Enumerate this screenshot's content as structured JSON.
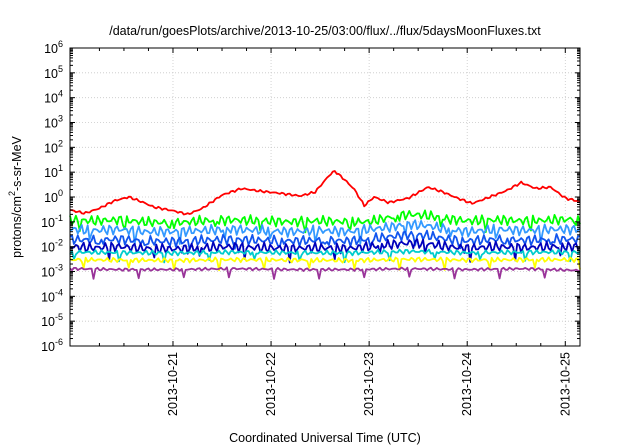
{
  "chart_data": {
    "type": "line",
    "title": "/data/run/goesPlots/archive/2013-10-25/03:00/flux/../flux/5daysMoonFluxes.txt",
    "xlabel": "Coordinated Universal Time (UTC)",
    "ylabel_parts": [
      "protons/cm",
      "2",
      "-s-sr-MeV"
    ],
    "y_scale": "log",
    "ylim": [
      1e-06,
      1000000.0
    ],
    "y_ticks": [
      {
        "base": "10",
        "exp": "-6",
        "value": 1e-06
      },
      {
        "base": "10",
        "exp": "-5",
        "value": 1e-05
      },
      {
        "base": "10",
        "exp": "-4",
        "value": 0.0001
      },
      {
        "base": "10",
        "exp": "-3",
        "value": 0.001
      },
      {
        "base": "10",
        "exp": "-2",
        "value": 0.01
      },
      {
        "base": "10",
        "exp": "-1",
        "value": 0.1
      },
      {
        "base": "10",
        "exp": "0",
        "value": 1
      },
      {
        "base": "10",
        "exp": "1",
        "value": 10
      },
      {
        "base": "10",
        "exp": "2",
        "value": 100
      },
      {
        "base": "10",
        "exp": "3",
        "value": 1000
      },
      {
        "base": "10",
        "exp": "4",
        "value": 10000
      },
      {
        "base": "10",
        "exp": "5",
        "value": 100000
      },
      {
        "base": "10",
        "exp": "6",
        "value": 1000000
      }
    ],
    "x_ticks": [
      "2013-10-21",
      "2013-10-22",
      "2013-10-23",
      "2013-10-24",
      "2013-10-25"
    ],
    "x_range_days": [
      -1.05,
      4.15
    ],
    "grid": true,
    "series": [
      {
        "color": "#ff0000",
        "values": [
          [
            -1.05,
            0.3
          ],
          [
            -0.9,
            0.22
          ],
          [
            -0.75,
            0.35
          ],
          [
            -0.6,
            0.7
          ],
          [
            -0.45,
            1.0
          ],
          [
            -0.3,
            0.6
          ],
          [
            -0.2,
            0.4
          ],
          [
            0.0,
            0.28
          ],
          [
            0.15,
            0.2
          ],
          [
            0.3,
            0.35
          ],
          [
            0.5,
            1.2
          ],
          [
            0.7,
            2.2
          ],
          [
            0.9,
            1.7
          ],
          [
            1.1,
            1.4
          ],
          [
            1.3,
            1.1
          ],
          [
            1.45,
            1.6
          ],
          [
            1.6,
            8.0
          ],
          [
            1.65,
            11.0
          ],
          [
            1.75,
            5.0
          ],
          [
            1.85,
            2.0
          ],
          [
            1.95,
            0.45
          ],
          [
            2.05,
            1.0
          ],
          [
            2.2,
            0.6
          ],
          [
            2.4,
            0.9
          ],
          [
            2.6,
            2.5
          ],
          [
            2.75,
            1.6
          ],
          [
            2.9,
            0.9
          ],
          [
            3.05,
            0.55
          ],
          [
            3.2,
            0.9
          ],
          [
            3.4,
            1.8
          ],
          [
            3.55,
            3.8
          ],
          [
            3.7,
            2.2
          ],
          [
            3.85,
            2.5
          ],
          [
            4.0,
            0.9
          ],
          [
            4.15,
            0.65
          ]
        ]
      },
      {
        "color": "#00ff00",
        "values": [
          [
            -1.05,
            0.12
          ],
          [
            -0.8,
            0.11
          ],
          [
            -0.55,
            0.12
          ],
          [
            -0.3,
            0.1
          ],
          [
            0.0,
            0.09
          ],
          [
            0.3,
            0.11
          ],
          [
            0.6,
            0.12
          ],
          [
            0.9,
            0.11
          ],
          [
            1.2,
            0.1
          ],
          [
            1.5,
            0.11
          ],
          [
            1.8,
            0.1
          ],
          [
            2.0,
            0.1
          ],
          [
            2.2,
            0.15
          ],
          [
            2.4,
            0.2
          ],
          [
            2.6,
            0.18
          ],
          [
            2.8,
            0.13
          ],
          [
            3.0,
            0.11
          ],
          [
            3.3,
            0.12
          ],
          [
            3.6,
            0.11
          ],
          [
            3.9,
            0.12
          ],
          [
            4.15,
            0.13
          ]
        ]
      },
      {
        "color": "#3399ff",
        "values": [
          [
            -1.05,
            0.05
          ],
          [
            -0.8,
            0.045
          ],
          [
            -0.55,
            0.05
          ],
          [
            -0.3,
            0.04
          ],
          [
            0.0,
            0.04
          ],
          [
            0.3,
            0.045
          ],
          [
            0.6,
            0.05
          ],
          [
            0.9,
            0.045
          ],
          [
            1.2,
            0.04
          ],
          [
            1.5,
            0.045
          ],
          [
            1.8,
            0.04
          ],
          [
            2.0,
            0.05
          ],
          [
            2.2,
            0.06
          ],
          [
            2.4,
            0.08
          ],
          [
            2.6,
            0.07
          ],
          [
            2.8,
            0.05
          ],
          [
            3.0,
            0.04
          ],
          [
            3.3,
            0.05
          ],
          [
            3.6,
            0.045
          ],
          [
            3.9,
            0.05
          ],
          [
            4.15,
            0.05
          ]
        ]
      },
      {
        "color": "#1155ee",
        "values": [
          [
            -1.05,
            0.02
          ],
          [
            -0.8,
            0.018
          ],
          [
            -0.55,
            0.02
          ],
          [
            -0.3,
            0.017
          ],
          [
            0.0,
            0.016
          ],
          [
            0.3,
            0.018
          ],
          [
            0.6,
            0.02
          ],
          [
            0.9,
            0.018
          ],
          [
            1.2,
            0.017
          ],
          [
            1.5,
            0.018
          ],
          [
            1.8,
            0.017
          ],
          [
            2.0,
            0.02
          ],
          [
            2.2,
            0.025
          ],
          [
            2.4,
            0.03
          ],
          [
            2.6,
            0.028
          ],
          [
            2.8,
            0.02
          ],
          [
            3.0,
            0.017
          ],
          [
            3.3,
            0.02
          ],
          [
            3.6,
            0.018
          ],
          [
            3.9,
            0.02
          ],
          [
            4.15,
            0.02
          ]
        ]
      },
      {
        "color": "#0000bb",
        "values": [
          [
            -1.05,
            0.01
          ],
          [
            -0.8,
            0.009
          ],
          [
            -0.55,
            0.01
          ],
          [
            -0.3,
            0.0085
          ],
          [
            0.0,
            0.008
          ],
          [
            0.3,
            0.009
          ],
          [
            0.6,
            0.01
          ],
          [
            0.9,
            0.009
          ],
          [
            1.2,
            0.0085
          ],
          [
            1.5,
            0.009
          ],
          [
            1.8,
            0.0085
          ],
          [
            2.0,
            0.01
          ],
          [
            2.2,
            0.012
          ],
          [
            2.4,
            0.014
          ],
          [
            2.6,
            0.013
          ],
          [
            2.8,
            0.01
          ],
          [
            3.0,
            0.0085
          ],
          [
            3.3,
            0.01
          ],
          [
            3.6,
            0.009
          ],
          [
            3.9,
            0.01
          ],
          [
            4.15,
            0.01
          ]
        ]
      },
      {
        "color": "#00cccc",
        "values": [
          [
            -1.05,
            0.006
          ],
          [
            -0.55,
            0.0058
          ],
          [
            0.0,
            0.0055
          ],
          [
            0.6,
            0.006
          ],
          [
            1.2,
            0.0057
          ],
          [
            1.8,
            0.0056
          ],
          [
            2.4,
            0.0065
          ],
          [
            3.0,
            0.0057
          ],
          [
            3.6,
            0.006
          ],
          [
            4.15,
            0.006
          ]
        ]
      },
      {
        "color": "#ffff00",
        "values": [
          [
            -1.05,
            0.003
          ],
          [
            -0.55,
            0.0029
          ],
          [
            0.0,
            0.0028
          ],
          [
            0.6,
            0.003
          ],
          [
            1.2,
            0.0029
          ],
          [
            1.8,
            0.0028
          ],
          [
            2.4,
            0.0031
          ],
          [
            3.0,
            0.0029
          ],
          [
            3.6,
            0.003
          ],
          [
            4.15,
            0.003
          ]
        ]
      },
      {
        "color": "#993399",
        "values": [
          [
            -1.05,
            0.0013
          ],
          [
            -0.55,
            0.0012
          ],
          [
            0.0,
            0.0012
          ],
          [
            0.6,
            0.0013
          ],
          [
            1.2,
            0.0012
          ],
          [
            1.8,
            0.0012
          ],
          [
            2.4,
            0.0013
          ],
          [
            3.0,
            0.0012
          ],
          [
            3.6,
            0.0013
          ],
          [
            4.15,
            0.0011
          ]
        ]
      }
    ]
  }
}
